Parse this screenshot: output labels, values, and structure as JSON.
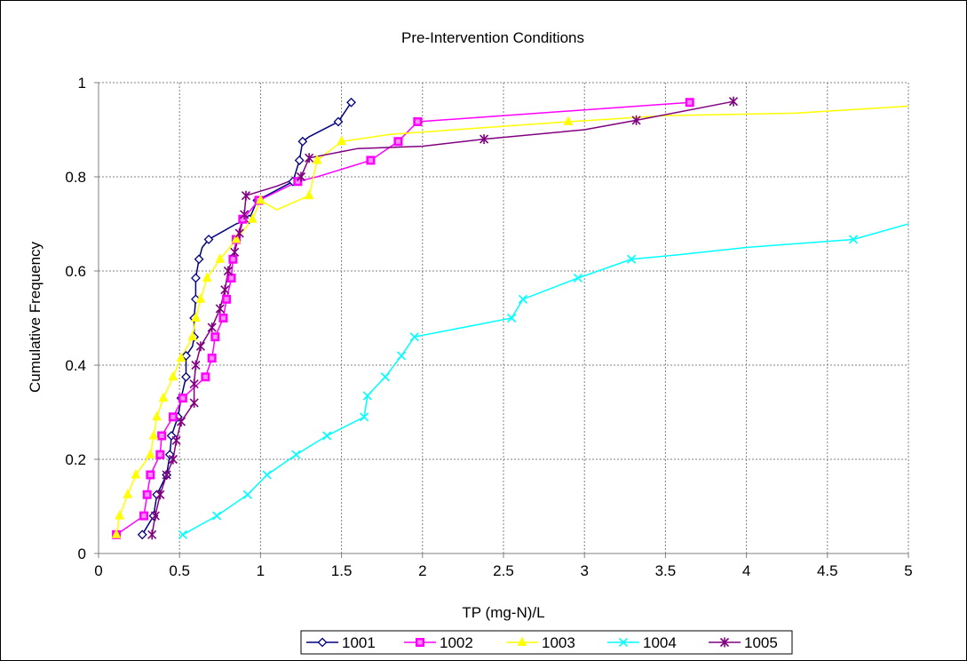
{
  "chart_data": {
    "type": "line",
    "title": "Pre-Intervention Conditions",
    "xlabel": "TP (mg-N)/L",
    "ylabel": "Cumulative Frequency",
    "xlim": [
      0,
      5
    ],
    "ylim": [
      0,
      1
    ],
    "x_ticks": [
      "0",
      "0.5",
      "1",
      "1.5",
      "2",
      "2.5",
      "3",
      "3.5",
      "4",
      "4.5",
      "5"
    ],
    "y_ticks": [
      "0",
      "0.2",
      "0.4",
      "0.6",
      "0.8",
      "1"
    ],
    "grid": true,
    "legend_position": "bottom",
    "series": [
      {
        "name": "1001",
        "color": "#000080",
        "marker": "diamond",
        "points": [
          [
            0.27,
            0.04
          ],
          [
            0.34,
            0.08
          ],
          [
            0.36,
            0.125
          ],
          [
            0.42,
            0.167
          ],
          [
            0.44,
            0.21
          ],
          [
            0.45,
            0.25
          ],
          [
            0.49,
            0.29
          ],
          [
            0.51,
            0.33
          ],
          [
            0.54,
            0.375
          ],
          [
            0.54,
            0.42
          ],
          [
            0.59,
            0.46
          ],
          [
            0.59,
            0.5
          ],
          [
            0.6,
            0.54
          ],
          [
            0.6,
            0.585
          ],
          [
            0.62,
            0.625
          ],
          [
            0.68,
            0.667
          ],
          [
            0.93,
            0.71
          ],
          [
            0.98,
            0.75
          ],
          [
            1.2,
            0.79
          ],
          [
            1.24,
            0.835
          ],
          [
            1.26,
            0.875
          ],
          [
            1.48,
            0.917
          ],
          [
            1.56,
            0.958
          ]
        ],
        "line": [
          [
            0.27,
            0.04
          ],
          [
            0.34,
            0.08
          ],
          [
            0.36,
            0.125
          ],
          [
            0.42,
            0.167
          ],
          [
            0.44,
            0.21
          ],
          [
            0.45,
            0.25
          ],
          [
            0.49,
            0.29
          ],
          [
            0.51,
            0.33
          ],
          [
            0.54,
            0.375
          ],
          [
            0.54,
            0.42
          ],
          [
            0.58,
            0.44
          ],
          [
            0.59,
            0.46
          ],
          [
            0.59,
            0.5
          ],
          [
            0.6,
            0.54
          ],
          [
            0.6,
            0.585
          ],
          [
            0.62,
            0.625
          ],
          [
            0.64,
            0.65
          ],
          [
            0.68,
            0.667
          ],
          [
            0.85,
            0.7
          ],
          [
            0.93,
            0.71
          ],
          [
            0.98,
            0.75
          ],
          [
            1.2,
            0.79
          ],
          [
            1.24,
            0.835
          ],
          [
            1.26,
            0.875
          ],
          [
            1.3,
            0.885
          ],
          [
            1.48,
            0.917
          ],
          [
            1.56,
            0.958
          ]
        ]
      },
      {
        "name": "1002",
        "color": "#FF00FF",
        "marker": "square",
        "points": [
          [
            0.11,
            0.04
          ],
          [
            0.28,
            0.08
          ],
          [
            0.3,
            0.125
          ],
          [
            0.32,
            0.167
          ],
          [
            0.38,
            0.21
          ],
          [
            0.39,
            0.25
          ],
          [
            0.46,
            0.29
          ],
          [
            0.52,
            0.33
          ],
          [
            0.66,
            0.375
          ],
          [
            0.7,
            0.415
          ],
          [
            0.72,
            0.46
          ],
          [
            0.77,
            0.5
          ],
          [
            0.79,
            0.54
          ],
          [
            0.82,
            0.585
          ],
          [
            0.83,
            0.625
          ],
          [
            0.85,
            0.667
          ],
          [
            0.89,
            0.71
          ],
          [
            0.99,
            0.75
          ],
          [
            1.23,
            0.79
          ],
          [
            1.85,
            0.875
          ],
          [
            1.97,
            0.917
          ],
          [
            1.68,
            0.835
          ],
          [
            3.65,
            0.958
          ]
        ],
        "line": [
          [
            0.11,
            0.04
          ],
          [
            0.28,
            0.08
          ],
          [
            0.3,
            0.125
          ],
          [
            0.32,
            0.167
          ],
          [
            0.38,
            0.21
          ],
          [
            0.39,
            0.25
          ],
          [
            0.46,
            0.29
          ],
          [
            0.52,
            0.33
          ],
          [
            0.66,
            0.375
          ],
          [
            0.7,
            0.415
          ],
          [
            0.72,
            0.46
          ],
          [
            0.77,
            0.5
          ],
          [
            0.79,
            0.54
          ],
          [
            0.82,
            0.585
          ],
          [
            0.83,
            0.625
          ],
          [
            0.85,
            0.667
          ],
          [
            0.89,
            0.71
          ],
          [
            0.99,
            0.75
          ],
          [
            1.23,
            0.79
          ],
          [
            1.35,
            0.8
          ],
          [
            1.68,
            0.835
          ],
          [
            1.85,
            0.875
          ],
          [
            1.97,
            0.917
          ],
          [
            3.65,
            0.958
          ]
        ]
      },
      {
        "name": "1003",
        "color": "#FFFF00",
        "marker": "triangle",
        "points": [
          [
            0.11,
            0.04
          ],
          [
            0.13,
            0.08
          ],
          [
            0.18,
            0.125
          ],
          [
            0.23,
            0.167
          ],
          [
            0.32,
            0.21
          ],
          [
            0.34,
            0.25
          ],
          [
            0.36,
            0.29
          ],
          [
            0.4,
            0.33
          ],
          [
            0.46,
            0.375
          ],
          [
            0.51,
            0.415
          ],
          [
            0.58,
            0.46
          ],
          [
            0.6,
            0.5
          ],
          [
            0.63,
            0.54
          ],
          [
            0.67,
            0.585
          ],
          [
            0.75,
            0.625
          ],
          [
            0.85,
            0.667
          ],
          [
            0.95,
            0.71
          ],
          [
            1.0,
            0.75
          ],
          [
            1.3,
            0.76
          ],
          [
            1.35,
            0.835
          ],
          [
            1.5,
            0.875
          ],
          [
            2.9,
            0.917
          ]
        ],
        "line": [
          [
            0.11,
            0.04
          ],
          [
            0.13,
            0.08
          ],
          [
            0.18,
            0.125
          ],
          [
            0.23,
            0.167
          ],
          [
            0.32,
            0.21
          ],
          [
            0.34,
            0.25
          ],
          [
            0.36,
            0.29
          ],
          [
            0.4,
            0.33
          ],
          [
            0.46,
            0.375
          ],
          [
            0.51,
            0.415
          ],
          [
            0.58,
            0.46
          ],
          [
            0.6,
            0.5
          ],
          [
            0.63,
            0.54
          ],
          [
            0.67,
            0.585
          ],
          [
            0.75,
            0.625
          ],
          [
            0.85,
            0.667
          ],
          [
            0.95,
            0.71
          ],
          [
            1.0,
            0.75
          ],
          [
            1.1,
            0.73
          ],
          [
            1.3,
            0.76
          ],
          [
            1.35,
            0.835
          ],
          [
            1.5,
            0.875
          ],
          [
            1.8,
            0.89
          ],
          [
            2.2,
            0.9
          ],
          [
            2.9,
            0.917
          ],
          [
            3.5,
            0.93
          ],
          [
            4.3,
            0.935
          ],
          [
            5.0,
            0.95
          ]
        ]
      },
      {
        "name": "1004",
        "color": "#00FFFF",
        "marker": "x",
        "points": [
          [
            0.52,
            0.04
          ],
          [
            0.73,
            0.08
          ],
          [
            0.92,
            0.125
          ],
          [
            1.04,
            0.167
          ],
          [
            1.22,
            0.21
          ],
          [
            1.41,
            0.25
          ],
          [
            1.64,
            0.29
          ],
          [
            1.66,
            0.335
          ],
          [
            1.77,
            0.375
          ],
          [
            1.87,
            0.42
          ],
          [
            1.95,
            0.46
          ],
          [
            2.55,
            0.5
          ],
          [
            2.62,
            0.54
          ],
          [
            2.96,
            0.585
          ],
          [
            3.29,
            0.625
          ],
          [
            4.66,
            0.667
          ]
        ],
        "line": [
          [
            0.52,
            0.04
          ],
          [
            0.73,
            0.08
          ],
          [
            0.92,
            0.125
          ],
          [
            1.04,
            0.167
          ],
          [
            1.22,
            0.21
          ],
          [
            1.41,
            0.25
          ],
          [
            1.64,
            0.29
          ],
          [
            1.66,
            0.335
          ],
          [
            1.77,
            0.375
          ],
          [
            1.87,
            0.42
          ],
          [
            1.95,
            0.46
          ],
          [
            2.1,
            0.47
          ],
          [
            2.55,
            0.5
          ],
          [
            2.62,
            0.54
          ],
          [
            2.96,
            0.585
          ],
          [
            3.29,
            0.625
          ],
          [
            3.6,
            0.635
          ],
          [
            4.0,
            0.65
          ],
          [
            4.66,
            0.667
          ],
          [
            5.0,
            0.7
          ]
        ]
      },
      {
        "name": "1005",
        "color": "#800080",
        "marker": "star",
        "points": [
          [
            0.33,
            0.04
          ],
          [
            0.35,
            0.08
          ],
          [
            0.38,
            0.125
          ],
          [
            0.42,
            0.167
          ],
          [
            0.46,
            0.2
          ],
          [
            0.48,
            0.24
          ],
          [
            0.51,
            0.28
          ],
          [
            0.59,
            0.32
          ],
          [
            0.59,
            0.36
          ],
          [
            0.6,
            0.4
          ],
          [
            0.63,
            0.44
          ],
          [
            0.7,
            0.48
          ],
          [
            0.75,
            0.52
          ],
          [
            0.78,
            0.56
          ],
          [
            0.8,
            0.6
          ],
          [
            0.84,
            0.64
          ],
          [
            0.87,
            0.68
          ],
          [
            0.9,
            0.72
          ],
          [
            0.91,
            0.76
          ],
          [
            1.25,
            0.8
          ],
          [
            1.3,
            0.84
          ],
          [
            2.38,
            0.88
          ],
          [
            3.32,
            0.92
          ],
          [
            3.92,
            0.96
          ]
        ],
        "line": [
          [
            0.33,
            0.04
          ],
          [
            0.35,
            0.08
          ],
          [
            0.38,
            0.125
          ],
          [
            0.42,
            0.167
          ],
          [
            0.46,
            0.2
          ],
          [
            0.48,
            0.24
          ],
          [
            0.51,
            0.28
          ],
          [
            0.59,
            0.32
          ],
          [
            0.59,
            0.36
          ],
          [
            0.6,
            0.4
          ],
          [
            0.63,
            0.44
          ],
          [
            0.7,
            0.48
          ],
          [
            0.75,
            0.52
          ],
          [
            0.78,
            0.56
          ],
          [
            0.8,
            0.6
          ],
          [
            0.84,
            0.64
          ],
          [
            0.87,
            0.68
          ],
          [
            0.9,
            0.72
          ],
          [
            0.91,
            0.76
          ],
          [
            1.1,
            0.78
          ],
          [
            1.25,
            0.8
          ],
          [
            1.3,
            0.84
          ],
          [
            1.6,
            0.86
          ],
          [
            2.0,
            0.865
          ],
          [
            2.38,
            0.88
          ],
          [
            3.0,
            0.9
          ],
          [
            3.32,
            0.92
          ],
          [
            3.92,
            0.96
          ]
        ]
      }
    ]
  }
}
